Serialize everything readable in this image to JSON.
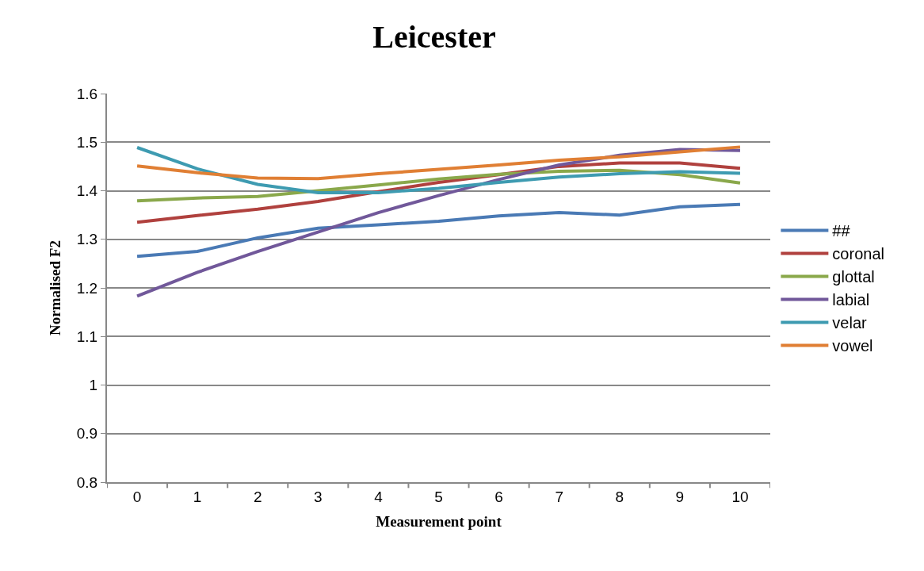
{
  "chart_data": {
    "type": "line",
    "title": "Leicester",
    "xlabel": "Measurement point",
    "ylabel": "Normalised F2",
    "categories": [
      "0",
      "1",
      "2",
      "3",
      "4",
      "5",
      "6",
      "7",
      "8",
      "9",
      "10"
    ],
    "series": [
      {
        "name": "##",
        "color": "#4a7ab5",
        "values": [
          1.265,
          1.275,
          1.303,
          1.323,
          1.33,
          1.337,
          1.348,
          1.355,
          1.35,
          1.367,
          1.372
        ]
      },
      {
        "name": "coronal",
        "color": "#b0413e",
        "values": [
          1.335,
          1.349,
          1.362,
          1.378,
          1.398,
          1.417,
          1.433,
          1.45,
          1.457,
          1.457,
          1.446
        ]
      },
      {
        "name": "glottal",
        "color": "#8aa84b",
        "values": [
          1.379,
          1.385,
          1.388,
          1.4,
          1.412,
          1.424,
          1.434,
          1.44,
          1.442,
          1.433,
          1.416
        ]
      },
      {
        "name": "labial",
        "color": "#71589a",
        "values": [
          1.183,
          1.232,
          1.275,
          1.315,
          1.355,
          1.39,
          1.423,
          1.453,
          1.473,
          1.485,
          1.483
        ]
      },
      {
        "name": "velar",
        "color": "#3e9bb1",
        "values": [
          1.489,
          1.445,
          1.413,
          1.396,
          1.396,
          1.405,
          1.417,
          1.428,
          1.435,
          1.439,
          1.436
        ]
      },
      {
        "name": "vowel",
        "color": "#e07f34",
        "values": [
          1.451,
          1.437,
          1.426,
          1.425,
          1.435,
          1.444,
          1.453,
          1.463,
          1.47,
          1.48,
          1.49
        ]
      }
    ],
    "ylim": [
      0.8,
      1.6
    ],
    "yticks": [
      0.8,
      0.9,
      1,
      1.1,
      1.2,
      1.3,
      1.4,
      1.5,
      1.6
    ],
    "grid": "y",
    "legend": "right",
    "marker": "none",
    "line_style": "solid"
  }
}
